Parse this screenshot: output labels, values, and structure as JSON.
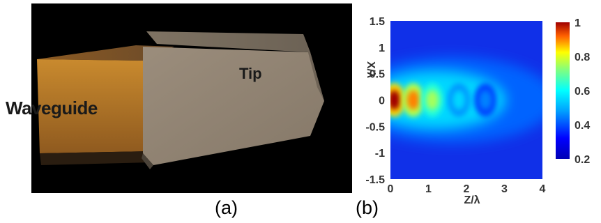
{
  "panel_a": {
    "waveguide_label": "Waveguide",
    "tip_label": "Tip",
    "caption": "(a)"
  },
  "panel_b": {
    "caption": "(b)"
  },
  "chart_data": {
    "type": "heatmap",
    "title": "",
    "xlabel": "Z/λ",
    "ylabel": "X/λ",
    "xlim": [
      0,
      4
    ],
    "ylim": [
      -1.5,
      1.5
    ],
    "x_ticks": [
      "0",
      "1",
      "2",
      "3",
      "4"
    ],
    "y_ticks": [
      "1.5",
      "1",
      "0.5",
      "0",
      "-0.5",
      "-1",
      "-1.5"
    ],
    "colorbar": {
      "range": [
        0.2,
        1
      ],
      "ticks": [
        "1",
        "0.8",
        "0.6",
        "0.4",
        "0.2"
      ],
      "colormap": "jet"
    },
    "hotspots": [
      {
        "z": 0.1,
        "x": 0,
        "value": 1.0
      },
      {
        "z": 0.6,
        "x": 0,
        "value": 0.9
      },
      {
        "z": 1.1,
        "x": 0,
        "value": 0.75
      },
      {
        "z": 1.8,
        "x": 0,
        "value": 0.55
      },
      {
        "z": 2.5,
        "x": 0,
        "value": 0.45
      }
    ],
    "background_value": 0.2
  }
}
